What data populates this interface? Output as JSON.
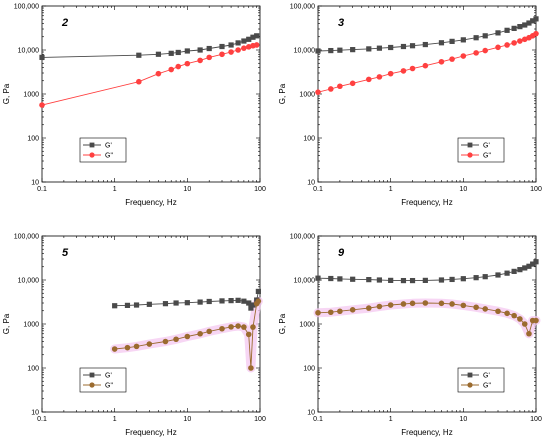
{
  "figure": {
    "background": "#ffffff"
  },
  "chart_data": [
    {
      "panel_label": "2",
      "type": "line",
      "x_scale": "log",
      "y_scale": "log",
      "xlim": [
        0.1,
        100
      ],
      "ylim": [
        10,
        100000
      ],
      "x_ticks": [
        "0.1",
        "1",
        "10",
        "100"
      ],
      "y_ticks": [
        "10",
        "100",
        "1000",
        "10,000",
        "100,000"
      ],
      "xlabel": "Frequency, Hz",
      "ylabel": "G, Pa",
      "legend": "lower-left",
      "series": [
        {
          "name": "G'",
          "color": "#4a4a4a",
          "marker": "square",
          "x": [
            0.1,
            2.15,
            4.0,
            6.0,
            7.5,
            10,
            15,
            20,
            30,
            40,
            50,
            60,
            70,
            80,
            90
          ],
          "y": [
            6800,
            7600,
            8000,
            8400,
            8800,
            9500,
            10000,
            10800,
            12000,
            13000,
            14500,
            16000,
            17500,
            19500,
            21000
          ]
        },
        {
          "name": "G\"",
          "color": "#ff4040",
          "marker": "circle",
          "x": [
            0.1,
            2.15,
            4.0,
            6.0,
            7.5,
            10,
            15,
            20,
            30,
            40,
            50,
            60,
            70,
            80,
            90
          ],
          "y": [
            560,
            1900,
            2900,
            3600,
            4200,
            4900,
            5800,
            6800,
            8000,
            9000,
            10000,
            11000,
            11800,
            12500,
            13000
          ]
        }
      ]
    },
    {
      "panel_label": "3",
      "type": "line",
      "x_scale": "log",
      "y_scale": "log",
      "xlim": [
        0.1,
        100
      ],
      "ylim": [
        10,
        100000
      ],
      "x_ticks": [
        "0.1",
        "1",
        "10",
        "100"
      ],
      "y_ticks": [
        "10",
        "100",
        "1000",
        "10,000",
        "100,000"
      ],
      "xlabel": "Frequency, Hz",
      "ylabel": "G, Pa",
      "legend": "lower-right",
      "series": [
        {
          "name": "G'",
          "color": "#4a4a4a",
          "marker": "square",
          "x": [
            0.1,
            0.15,
            0.2,
            0.3,
            0.5,
            0.7,
            1,
            1.5,
            2,
            3,
            5,
            7,
            10,
            15,
            20,
            30,
            40,
            50,
            60,
            70,
            80,
            90,
            100
          ],
          "y": [
            9500,
            9700,
            9900,
            10200,
            10600,
            11000,
            11400,
            12000,
            12500,
            13300,
            14600,
            15700,
            17000,
            19000,
            21000,
            24500,
            28000,
            31000,
            34000,
            37000,
            41000,
            46000,
            51000
          ]
        },
        {
          "name": "G\"",
          "color": "#ff4040",
          "marker": "circle",
          "x": [
            0.1,
            0.15,
            0.2,
            0.3,
            0.5,
            0.7,
            1,
            1.5,
            2,
            3,
            5,
            7,
            10,
            15,
            20,
            30,
            40,
            50,
            60,
            70,
            80,
            90,
            100
          ],
          "y": [
            1100,
            1300,
            1500,
            1750,
            2150,
            2450,
            2900,
            3350,
            3800,
            4400,
            5400,
            6200,
            7300,
            8600,
            9700,
            11500,
            13000,
            14500,
            16000,
            17500,
            19000,
            21000,
            23500
          ]
        }
      ]
    },
    {
      "panel_label": "5",
      "type": "line",
      "x_scale": "log",
      "y_scale": "log",
      "xlim": [
        0.1,
        100
      ],
      "ylim": [
        10,
        100000
      ],
      "x_ticks": [
        "0.1",
        "1",
        "10",
        "100"
      ],
      "y_ticks": [
        "10",
        "100",
        "1000",
        "10,000",
        "100,000"
      ],
      "xlabel": "Frequency, Hz",
      "ylabel": "G, Pa",
      "legend": "lower-left",
      "highlight_color": "#f4c8f0",
      "series": [
        {
          "name": "G'",
          "color": "#4a4a4a",
          "marker": "square",
          "x": [
            1,
            1.5,
            2,
            3,
            5,
            7,
            10,
            15,
            20,
            30,
            40,
            50,
            60,
            70,
            75,
            80,
            90,
            95
          ],
          "y": [
            2600,
            2650,
            2700,
            2800,
            2900,
            3000,
            3050,
            3150,
            3250,
            3350,
            3400,
            3450,
            3300,
            3000,
            2300,
            2700,
            3500,
            5500
          ]
        },
        {
          "name": "G\"",
          "color": "#9b6b2f",
          "marker": "circle",
          "x": [
            1,
            1.5,
            2,
            3,
            5,
            7,
            10,
            15,
            20,
            30,
            40,
            50,
            60,
            70,
            75,
            80,
            90,
            95
          ],
          "y": [
            270,
            290,
            310,
            350,
            400,
            450,
            520,
            600,
            680,
            780,
            860,
            900,
            850,
            580,
            100,
            850,
            2900,
            3300
          ]
        }
      ]
    },
    {
      "panel_label": "9",
      "type": "line",
      "x_scale": "log",
      "y_scale": "log",
      "xlim": [
        0.1,
        100
      ],
      "ylim": [
        10,
        100000
      ],
      "x_ticks": [
        "0.1",
        "1",
        "10",
        "100"
      ],
      "y_ticks": [
        "10",
        "100",
        "1000",
        "10,000",
        "100,000"
      ],
      "xlabel": "Frequency, Hz",
      "ylabel": "G, Pa",
      "legend": "lower-right",
      "highlight_color": "#f4c8f0",
      "series": [
        {
          "name": "G'",
          "color": "#4a4a4a",
          "marker": "square",
          "x": [
            0.1,
            0.15,
            0.2,
            0.3,
            0.5,
            0.7,
            1,
            1.5,
            2,
            3,
            5,
            7,
            10,
            15,
            20,
            30,
            40,
            50,
            60,
            70,
            80,
            90,
            100
          ],
          "y": [
            11000,
            10800,
            10600,
            10400,
            10200,
            10000,
            9800,
            9700,
            9700,
            9800,
            10000,
            10300,
            10700,
            11300,
            11900,
            13000,
            14300,
            15700,
            17200,
            18800,
            20500,
            23000,
            26000
          ]
        },
        {
          "name": "G\"",
          "color": "#9b6b2f",
          "marker": "circle",
          "x": [
            0.1,
            0.15,
            0.2,
            0.3,
            0.5,
            0.7,
            1,
            1.5,
            2,
            3,
            5,
            7,
            10,
            15,
            20,
            30,
            40,
            50,
            60,
            70,
            80,
            90,
            100
          ],
          "y": [
            1800,
            1850,
            1950,
            2100,
            2300,
            2500,
            2700,
            2850,
            2950,
            3000,
            2950,
            2850,
            2650,
            2400,
            2200,
            1950,
            1750,
            1550,
            1300,
            1000,
            600,
            1200,
            1200
          ]
        }
      ]
    }
  ]
}
